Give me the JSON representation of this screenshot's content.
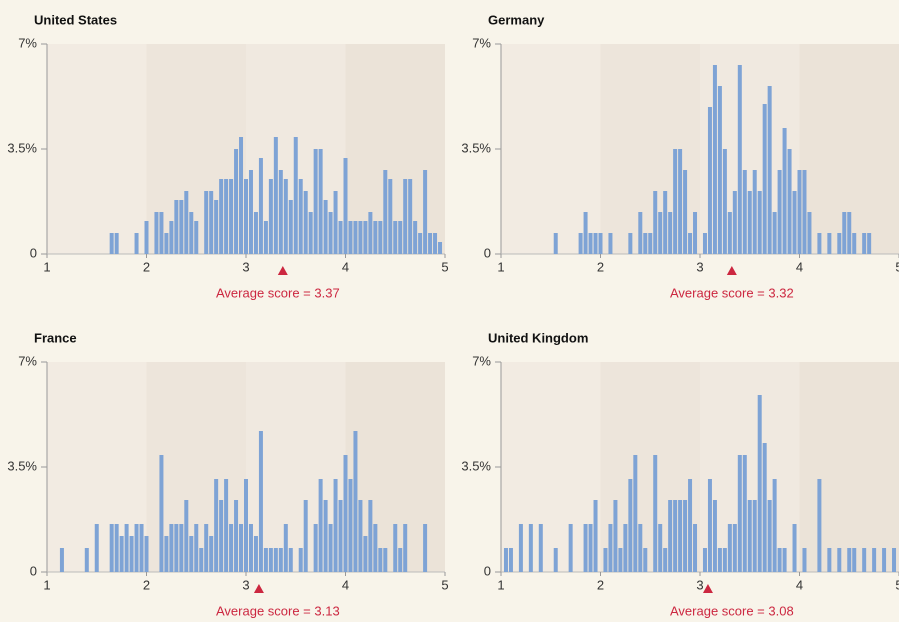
{
  "chart_data": [
    {
      "type": "bar",
      "title": "United States",
      "annotation": "Average score = 3.37",
      "average": 3.37,
      "color": "#7ea3d5",
      "marker_color": "#cc2740",
      "xlim": [
        1,
        5
      ],
      "xticks": [
        1,
        2,
        3,
        4,
        5
      ],
      "ylim": [
        0,
        7
      ],
      "yticks": [
        0,
        {
          "value": 3.5,
          "label": "3.5%"
        },
        {
          "value": 7,
          "label": "7%"
        }
      ],
      "x": [
        1.65,
        1.7,
        1.9,
        2.0,
        2.1,
        2.15,
        2.2,
        2.25,
        2.3,
        2.35,
        2.4,
        2.45,
        2.5,
        2.6,
        2.65,
        2.7,
        2.75,
        2.8,
        2.85,
        2.9,
        2.95,
        3.0,
        3.05,
        3.1,
        3.15,
        3.2,
        3.25,
        3.3,
        3.35,
        3.4,
        3.45,
        3.5,
        3.55,
        3.6,
        3.65,
        3.7,
        3.75,
        3.8,
        3.85,
        3.9,
        3.95,
        4.0,
        4.05,
        4.1,
        4.15,
        4.2,
        4.25,
        4.3,
        4.35,
        4.4,
        4.45,
        4.5,
        4.55,
        4.6,
        4.65,
        4.7,
        4.75,
        4.8,
        4.85,
        4.9,
        4.95
      ],
      "values": [
        0.7,
        0.7,
        0.7,
        1.1,
        1.4,
        1.4,
        0.7,
        1.1,
        1.8,
        1.8,
        2.1,
        1.4,
        1.1,
        2.1,
        2.1,
        1.8,
        2.5,
        2.5,
        2.5,
        3.5,
        3.9,
        2.5,
        2.8,
        1.4,
        3.2,
        1.1,
        2.5,
        3.9,
        2.8,
        2.5,
        1.8,
        3.9,
        2.5,
        2.1,
        1.4,
        3.5,
        3.5,
        1.8,
        1.4,
        2.1,
        1.1,
        3.2,
        1.1,
        1.1,
        1.1,
        1.1,
        1.4,
        1.1,
        1.1,
        2.8,
        2.5,
        1.1,
        1.1,
        2.5,
        2.5,
        1.1,
        0.7,
        2.8,
        0.7,
        0.7,
        0.4
      ]
    },
    {
      "type": "bar",
      "title": "Germany",
      "annotation": "Average score = 3.32",
      "average": 3.32,
      "color": "#7ea3d5",
      "marker_color": "#cc2740",
      "xlim": [
        1,
        5
      ],
      "xticks": [
        1,
        2,
        3,
        4,
        5
      ],
      "ylim": [
        0,
        7
      ],
      "yticks": [
        0,
        {
          "value": 3.5,
          "label": "3.5%"
        },
        {
          "value": 7,
          "label": "7%"
        }
      ],
      "x": [
        1.55,
        1.8,
        1.85,
        1.9,
        1.95,
        2.0,
        2.1,
        2.3,
        2.4,
        2.45,
        2.5,
        2.55,
        2.6,
        2.65,
        2.7,
        2.75,
        2.8,
        2.85,
        2.9,
        2.95,
        3.05,
        3.1,
        3.15,
        3.2,
        3.25,
        3.3,
        3.35,
        3.4,
        3.45,
        3.5,
        3.55,
        3.6,
        3.65,
        3.7,
        3.75,
        3.8,
        3.85,
        3.9,
        3.95,
        4.0,
        4.05,
        4.1,
        4.2,
        4.3,
        4.4,
        4.45,
        4.5,
        4.55,
        4.65,
        4.7
      ],
      "values": [
        0.7,
        0.7,
        1.4,
        0.7,
        0.7,
        0.7,
        0.7,
        0.7,
        1.4,
        0.7,
        0.7,
        2.1,
        1.4,
        2.1,
        1.4,
        3.5,
        3.5,
        2.8,
        0.7,
        1.4,
        0.7,
        4.9,
        6.3,
        5.6,
        3.5,
        1.4,
        2.1,
        6.3,
        2.8,
        2.1,
        2.8,
        2.1,
        5.0,
        5.6,
        1.4,
        2.8,
        4.2,
        3.5,
        2.1,
        2.8,
        2.8,
        1.4,
        0.7,
        0.7,
        0.7,
        1.4,
        1.4,
        0.7,
        0.7,
        0.7
      ]
    },
    {
      "type": "bar",
      "title": "France",
      "annotation": "Average score = 3.13",
      "average": 3.13,
      "color": "#7ea3d5",
      "marker_color": "#cc2740",
      "xlim": [
        1,
        5
      ],
      "xticks": [
        1,
        2,
        3,
        4,
        5
      ],
      "ylim": [
        0,
        7
      ],
      "yticks": [
        0,
        {
          "value": 3.5,
          "label": "3.5%"
        },
        {
          "value": 7,
          "label": "7%"
        }
      ],
      "x": [
        1.15,
        1.4,
        1.5,
        1.65,
        1.7,
        1.75,
        1.8,
        1.85,
        1.9,
        1.95,
        2.0,
        2.15,
        2.2,
        2.25,
        2.3,
        2.35,
        2.4,
        2.45,
        2.5,
        2.55,
        2.6,
        2.65,
        2.7,
        2.75,
        2.8,
        2.85,
        2.9,
        2.95,
        3.0,
        3.05,
        3.1,
        3.15,
        3.2,
        3.25,
        3.3,
        3.35,
        3.4,
        3.45,
        3.55,
        3.6,
        3.7,
        3.75,
        3.8,
        3.85,
        3.9,
        3.95,
        4.0,
        4.05,
        4.1,
        4.15,
        4.2,
        4.25,
        4.3,
        4.35,
        4.4,
        4.5,
        4.55,
        4.6,
        4.8
      ],
      "values": [
        0.8,
        0.8,
        1.6,
        1.6,
        1.6,
        1.2,
        1.6,
        1.2,
        1.6,
        1.6,
        1.2,
        3.9,
        1.2,
        1.6,
        1.6,
        1.6,
        2.4,
        1.2,
        1.6,
        0.8,
        1.6,
        1.2,
        3.1,
        2.4,
        3.1,
        1.6,
        2.4,
        1.6,
        3.1,
        1.6,
        1.2,
        4.7,
        0.8,
        0.8,
        0.8,
        0.8,
        1.6,
        0.8,
        0.8,
        2.4,
        1.6,
        3.1,
        2.4,
        1.6,
        3.1,
        2.4,
        3.9,
        3.1,
        4.7,
        2.4,
        1.2,
        2.4,
        1.6,
        0.8,
        0.8,
        1.6,
        0.8,
        1.6,
        1.6
      ]
    },
    {
      "type": "bar",
      "title": "United Kingdom",
      "annotation": "Average score = 3.08",
      "average": 3.08,
      "color": "#7ea3d5",
      "marker_color": "#cc2740",
      "xlim": [
        1,
        5
      ],
      "xticks": [
        1,
        2,
        3,
        4,
        5
      ],
      "ylim": [
        0,
        7
      ],
      "yticks": [
        0,
        {
          "value": 3.5,
          "label": "3.5%"
        },
        {
          "value": 7,
          "label": "7%"
        }
      ],
      "x": [
        1.05,
        1.1,
        1.2,
        1.3,
        1.4,
        1.55,
        1.7,
        1.85,
        1.9,
        1.95,
        2.05,
        2.1,
        2.15,
        2.2,
        2.25,
        2.3,
        2.35,
        2.4,
        2.45,
        2.55,
        2.6,
        2.65,
        2.7,
        2.75,
        2.8,
        2.85,
        2.9,
        2.95,
        3.05,
        3.1,
        3.15,
        3.2,
        3.25,
        3.3,
        3.35,
        3.4,
        3.45,
        3.5,
        3.55,
        3.6,
        3.65,
        3.7,
        3.75,
        3.8,
        3.85,
        3.95,
        4.05,
        4.2,
        4.3,
        4.4,
        4.5,
        4.55,
        4.65,
        4.75,
        4.85,
        4.95
      ],
      "values": [
        0.8,
        0.8,
        1.6,
        1.6,
        1.6,
        0.8,
        1.6,
        1.6,
        1.6,
        2.4,
        0.8,
        1.6,
        2.4,
        0.8,
        1.6,
        3.1,
        3.9,
        1.6,
        0.8,
        3.9,
        1.6,
        0.8,
        2.4,
        2.4,
        2.4,
        2.4,
        3.1,
        1.6,
        0.8,
        3.1,
        2.4,
        0.8,
        0.8,
        1.6,
        1.6,
        3.9,
        3.9,
        2.4,
        2.4,
        5.9,
        4.3,
        2.4,
        3.1,
        0.8,
        0.8,
        1.6,
        0.8,
        3.1,
        0.8,
        0.8,
        0.8,
        0.8,
        0.8,
        0.8,
        0.8,
        0.8
      ]
    }
  ]
}
